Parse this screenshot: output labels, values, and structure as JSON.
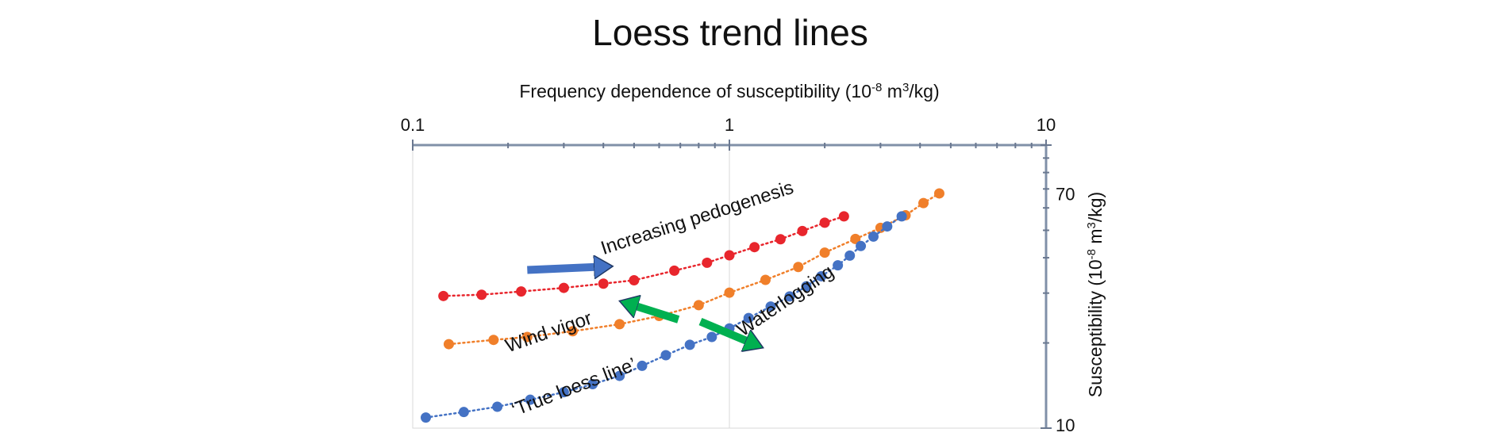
{
  "chart_data": {
    "type": "scatter",
    "title": "Loess trend lines",
    "xlabel_parts": [
      "Frequency dependence of susceptibility (10",
      "-8",
      " m",
      "3",
      "/kg)"
    ],
    "ylabel_parts": [
      "Susceptibility (10",
      "-8",
      " m",
      "3",
      "/kg)"
    ],
    "x_scale": "log",
    "y_scale": "log",
    "xlim": [
      0.1,
      10
    ],
    "ylim": [
      10,
      100
    ],
    "x_ticks": [
      "0.1",
      "1",
      "10"
    ],
    "y_ticks": [
      "70",
      "10"
    ],
    "x_axis_position": "top",
    "y_axis_position": "right",
    "grid": false,
    "series": [
      {
        "color": "#e8262d",
        "x": [
          0.125,
          0.165,
          0.22,
          0.3,
          0.4,
          0.5,
          0.67,
          0.85,
          1.0,
          1.2,
          1.45,
          1.7,
          2.0,
          2.3
        ],
        "y": [
          29.3,
          29.6,
          30.4,
          31.3,
          32.4,
          33.3,
          36.0,
          38.4,
          40.8,
          43.6,
          46.5,
          49.7,
          53.2,
          56.0
        ]
      },
      {
        "color": "#f07f2a",
        "x": [
          0.13,
          0.18,
          0.23,
          0.32,
          0.45,
          0.6,
          0.8,
          1.0,
          1.3,
          1.65,
          2.0,
          2.5,
          3.0,
          3.6,
          4.1,
          4.6
        ],
        "y": [
          19.8,
          20.5,
          21.0,
          22.0,
          23.3,
          24.9,
          27.2,
          30.1,
          33.4,
          37.1,
          41.7,
          46.6,
          51.0,
          56.5,
          62.4,
          67.5
        ]
      },
      {
        "color": "#4472c4",
        "x": [
          0.11,
          0.145,
          0.185,
          0.235,
          0.3,
          0.37,
          0.45,
          0.53,
          0.63,
          0.75,
          0.88,
          1.0,
          1.15,
          1.35,
          1.55,
          1.75,
          1.95,
          2.2,
          2.4,
          2.6,
          2.85,
          3.15,
          3.5
        ],
        "y": [
          10.9,
          11.4,
          11.9,
          12.6,
          13.4,
          14.3,
          15.3,
          16.6,
          18.1,
          19.7,
          21.0,
          22.5,
          24.5,
          26.9,
          29.2,
          31.7,
          34.4,
          37.6,
          40.7,
          44.0,
          47.5,
          51.6,
          56.0
        ]
      }
    ],
    "annotations": [
      {
        "text": "Increasing pedogenesis",
        "x": 0.4,
        "y": 41,
        "angle": -18
      },
      {
        "text": "Wind vigor",
        "x": 0.2,
        "y": 18.5,
        "angle": -19
      },
      {
        "text": "Waterlogging",
        "x": 1.1,
        "y": 21,
        "angle": -34
      },
      {
        "text": "‘True loess line’",
        "x": 0.21,
        "y": 11,
        "angle": -21
      }
    ],
    "arrows": [
      {
        "color": "#4472c4",
        "from": [
          0.23,
          36.2
        ],
        "to": [
          0.4,
          37.2
        ]
      },
      {
        "color": "#00b050",
        "from": [
          0.69,
          24.2
        ],
        "to": [
          0.48,
          27.5
        ]
      },
      {
        "color": "#00b050",
        "from": [
          0.81,
          23.8
        ],
        "to": [
          1.2,
          19.8
        ]
      }
    ]
  }
}
